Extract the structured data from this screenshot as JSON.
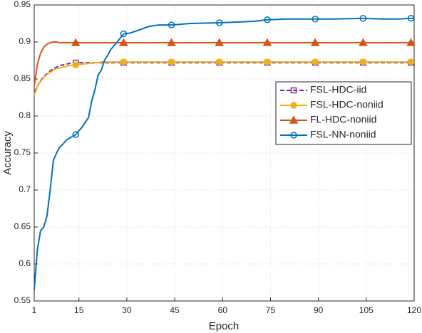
{
  "chart_data": {
    "type": "line",
    "xlabel": "Epoch",
    "ylabel": "Accuracy",
    "x": [
      1,
      2,
      3,
      4,
      5,
      6,
      7,
      8,
      9,
      10,
      11,
      12,
      14,
      16,
      18,
      19,
      20,
      21,
      22,
      23,
      24,
      25,
      27,
      29,
      31,
      33,
      35,
      37,
      40,
      44,
      50,
      59,
      65,
      70,
      74,
      80,
      89,
      95,
      104,
      110,
      115,
      119,
      120
    ],
    "series": [
      {
        "name": "FSL-HDC-iid",
        "color": "#7e2f8e",
        "dash": true,
        "marker": "square",
        "marker_fill": false,
        "values": [
          0.832,
          0.84,
          0.848,
          0.853,
          0.857,
          0.861,
          0.864,
          0.866,
          0.868,
          0.869,
          0.87,
          0.871,
          0.872,
          0.872,
          0.872,
          0.872,
          0.872,
          0.872,
          0.872,
          0.872,
          0.872,
          0.872,
          0.872,
          0.872,
          0.872,
          0.872,
          0.872,
          0.872,
          0.872,
          0.872,
          0.872,
          0.872,
          0.872,
          0.872,
          0.872,
          0.872,
          0.872,
          0.872,
          0.872,
          0.872,
          0.872,
          0.872,
          0.872
        ]
      },
      {
        "name": "FSL-HDC-noniid",
        "color": "#edb120",
        "dash": false,
        "marker": "circle",
        "marker_fill": true,
        "values": [
          0.828,
          0.84,
          0.847,
          0.852,
          0.856,
          0.859,
          0.862,
          0.864,
          0.865,
          0.866,
          0.867,
          0.868,
          0.869,
          0.87,
          0.871,
          0.871,
          0.872,
          0.872,
          0.873,
          0.873,
          0.873,
          0.873,
          0.873,
          0.873,
          0.873,
          0.873,
          0.873,
          0.873,
          0.873,
          0.873,
          0.873,
          0.873,
          0.873,
          0.873,
          0.873,
          0.873,
          0.873,
          0.873,
          0.873,
          0.873,
          0.873,
          0.873,
          0.873
        ]
      },
      {
        "name": "FL-HDC-noniid",
        "color": "#d95319",
        "dash": false,
        "marker": "triangle",
        "marker_fill": true,
        "values": [
          0.84,
          0.87,
          0.885,
          0.893,
          0.897,
          0.899,
          0.9,
          0.9,
          0.899,
          0.899,
          0.899,
          0.899,
          0.899,
          0.899,
          0.899,
          0.899,
          0.899,
          0.899,
          0.899,
          0.899,
          0.899,
          0.899,
          0.899,
          0.899,
          0.899,
          0.899,
          0.899,
          0.899,
          0.899,
          0.899,
          0.899,
          0.899,
          0.899,
          0.899,
          0.899,
          0.899,
          0.899,
          0.899,
          0.899,
          0.899,
          0.899,
          0.899,
          0.899
        ]
      },
      {
        "name": "FSL-NN-noniid",
        "color": "#0072bd",
        "dash": false,
        "marker": "circle",
        "marker_fill": false,
        "values": [
          0.565,
          0.62,
          0.645,
          0.65,
          0.665,
          0.7,
          0.74,
          0.75,
          0.758,
          0.762,
          0.767,
          0.77,
          0.775,
          0.785,
          0.798,
          0.82,
          0.835,
          0.855,
          0.862,
          0.875,
          0.882,
          0.89,
          0.9,
          0.911,
          0.912,
          0.915,
          0.918,
          0.921,
          0.923,
          0.923,
          0.925,
          0.926,
          0.927,
          0.928,
          0.93,
          0.931,
          0.931,
          0.931,
          0.932,
          0.931,
          0.931,
          0.932,
          0.932
        ]
      }
    ],
    "xlim": [
      1,
      120
    ],
    "xticks": [
      1,
      15,
      30,
      45,
      60,
      75,
      90,
      105,
      120
    ],
    "ylim": [
      0.55,
      0.95
    ],
    "yticks": [
      0.55,
      0.6,
      0.65,
      0.7,
      0.75,
      0.8,
      0.85,
      0.9,
      0.95
    ],
    "grid": true,
    "legend_loc": "center right"
  }
}
